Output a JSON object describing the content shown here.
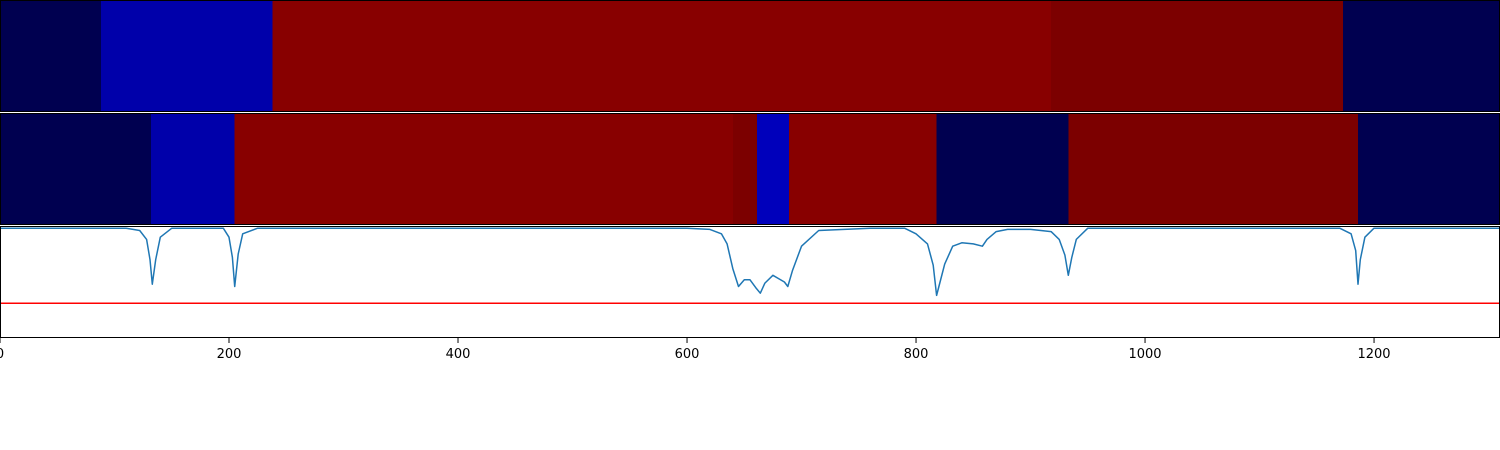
{
  "chart_data": [
    {
      "type": "heatmap",
      "title": "",
      "x_range": [
        0,
        1310
      ],
      "segments": [
        {
          "start": 0,
          "end": 88,
          "color": "#000050"
        },
        {
          "start": 88,
          "end": 238,
          "color": "#0000aa"
        },
        {
          "start": 238,
          "end": 918,
          "color": "#880000"
        },
        {
          "start": 918,
          "end": 1173,
          "color": "#7c0000"
        },
        {
          "start": 1173,
          "end": 1310,
          "color": "#000050"
        }
      ]
    },
    {
      "type": "heatmap",
      "title": "",
      "x_range": [
        0,
        1310
      ],
      "segments": [
        {
          "start": 0,
          "end": 132,
          "color": "#000050"
        },
        {
          "start": 132,
          "end": 205,
          "color": "#0000aa"
        },
        {
          "start": 205,
          "end": 640,
          "color": "#880000"
        },
        {
          "start": 640,
          "end": 661,
          "color": "#7c0000"
        },
        {
          "start": 661,
          "end": 689,
          "color": "#0000bb"
        },
        {
          "start": 689,
          "end": 818,
          "color": "#880000"
        },
        {
          "start": 818,
          "end": 933,
          "color": "#000050"
        },
        {
          "start": 933,
          "end": 1186,
          "color": "#7c0000"
        },
        {
          "start": 1186,
          "end": 1310,
          "color": "#000050"
        }
      ]
    },
    {
      "type": "line",
      "title": "",
      "xlabel": "",
      "ylabel": "",
      "xlim": [
        0,
        1310
      ],
      "ylim": [
        0,
        1
      ],
      "xticks": [
        0,
        200,
        400,
        600,
        800,
        1000,
        1200
      ],
      "threshold": 0.31,
      "threshold_color": "#ff0000",
      "line_color": "#1f77b4",
      "series": [
        {
          "x": [
            0,
            110,
            122,
            128,
            131,
            133,
            136,
            140,
            150,
            195,
            200,
            203,
            205,
            208,
            212,
            225,
            600,
            620,
            630,
            635,
            640,
            645,
            650,
            655,
            660,
            664,
            668,
            675,
            680,
            685,
            688,
            692,
            700,
            715,
            760,
            790,
            800,
            810,
            815,
            818,
            820,
            825,
            832,
            840,
            850,
            858,
            862,
            870,
            880,
            900,
            918,
            925,
            930,
            933,
            936,
            940,
            950,
            1170,
            1180,
            1184,
            1186,
            1188,
            1192,
            1200,
            1310
          ],
          "y": [
            0.98,
            0.98,
            0.96,
            0.88,
            0.7,
            0.48,
            0.7,
            0.9,
            0.98,
            0.98,
            0.9,
            0.72,
            0.46,
            0.75,
            0.93,
            0.98,
            0.98,
            0.97,
            0.93,
            0.84,
            0.62,
            0.46,
            0.52,
            0.52,
            0.45,
            0.4,
            0.49,
            0.56,
            0.53,
            0.5,
            0.46,
            0.6,
            0.82,
            0.96,
            0.98,
            0.98,
            0.93,
            0.84,
            0.65,
            0.38,
            0.46,
            0.66,
            0.82,
            0.85,
            0.84,
            0.82,
            0.88,
            0.95,
            0.97,
            0.97,
            0.95,
            0.88,
            0.74,
            0.56,
            0.72,
            0.88,
            0.98,
            0.98,
            0.93,
            0.78,
            0.48,
            0.7,
            0.9,
            0.98,
            0.98
          ]
        }
      ]
    }
  ]
}
